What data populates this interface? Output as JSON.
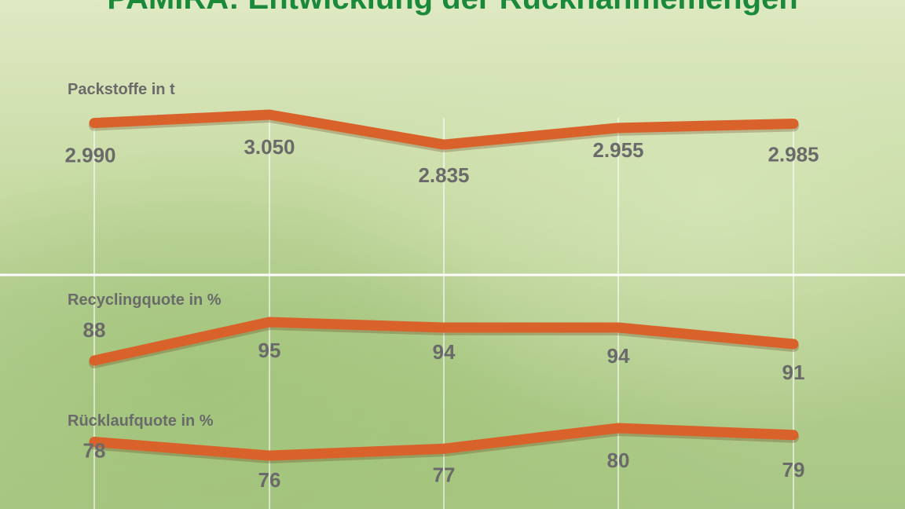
{
  "title": "PAMIRA: Entwicklung der Rücknahmemengen",
  "colors": {
    "line": "#d9622b",
    "label": "#6a6a6a",
    "title": "#1a8a3a"
  },
  "chart_data": [
    {
      "type": "line",
      "title": "Packstoffe in t",
      "values": [
        2990,
        3050,
        2835,
        2955,
        2985
      ],
      "data_labels": [
        "2.990",
        "3.050",
        "2.835",
        "2.955",
        "2.985"
      ]
    },
    {
      "type": "line",
      "title": "Recyclingquote in %",
      "values": [
        88,
        95,
        94,
        94,
        91
      ],
      "data_labels": [
        "88",
        "95",
        "94",
        "94",
        "91"
      ]
    },
    {
      "type": "line",
      "title": "Rücklaufquote in %",
      "values": [
        78,
        76,
        77,
        80,
        79
      ],
      "data_labels": [
        "78",
        "76",
        "77",
        "80",
        "79"
      ]
    }
  ]
}
